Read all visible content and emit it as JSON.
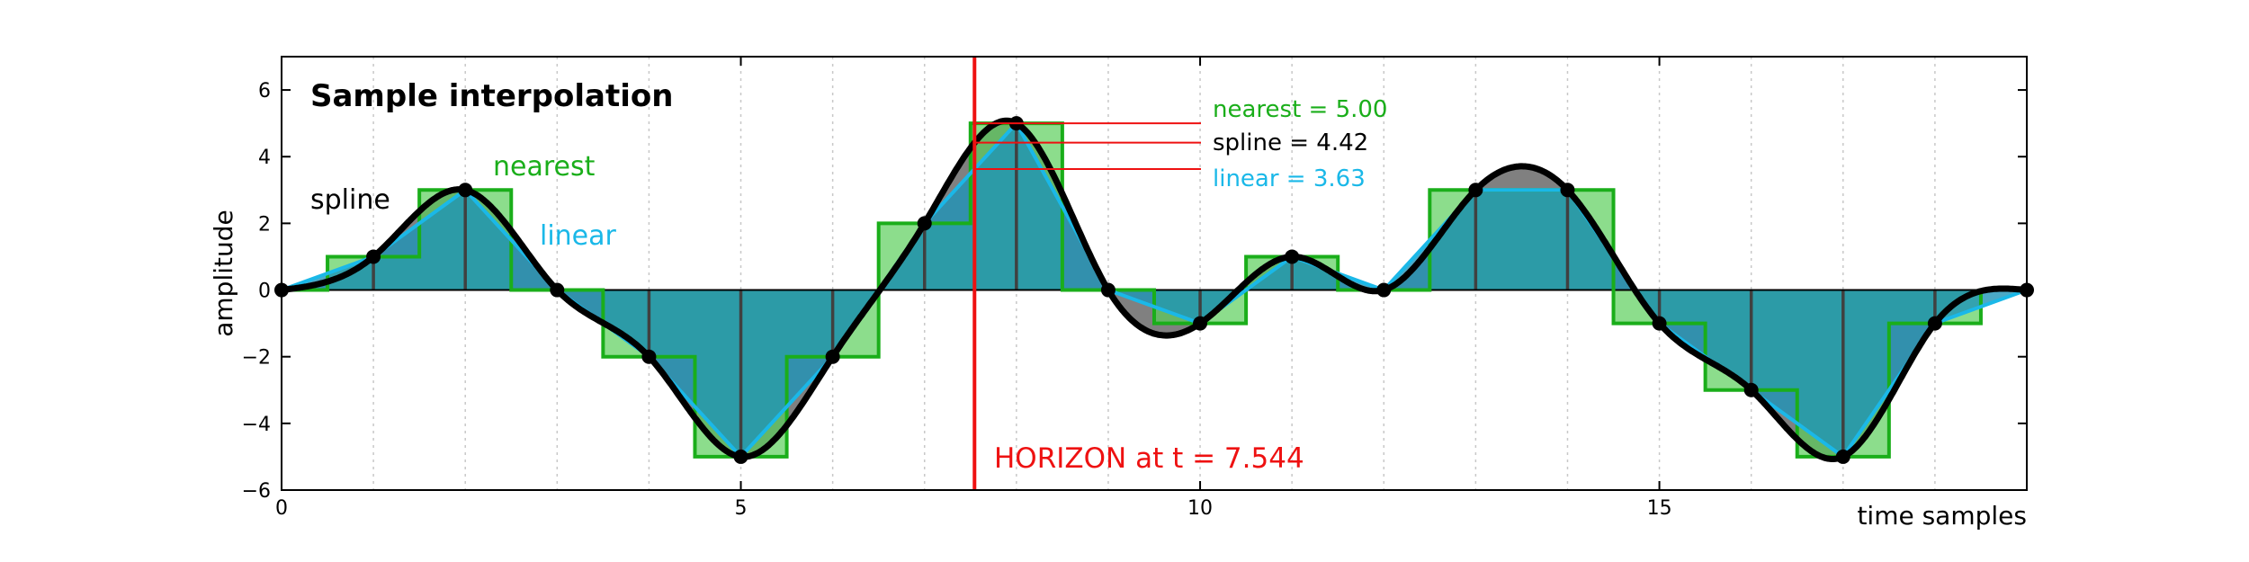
{
  "chart_data": {
    "type": "line",
    "title": "Sample interpolation",
    "xlabel": "time samples",
    "ylabel": "amplitude",
    "xlim": [
      0,
      19
    ],
    "ylim": [
      -6,
      7
    ],
    "x_ticks": [
      0,
      5,
      10,
      15
    ],
    "x_tick_labels": [
      "0",
      "5",
      "10",
      "15"
    ],
    "y_ticks": [
      -6,
      -4,
      -2,
      0,
      2,
      4,
      6
    ],
    "y_tick_labels": [
      "−6",
      "−4",
      "−2",
      "0",
      "2",
      "4",
      "6"
    ],
    "grid": "vertical dotted at every sample",
    "samples": {
      "x": [
        0,
        1,
        2,
        3,
        4,
        5,
        6,
        7,
        8,
        9,
        10,
        11,
        12,
        13,
        14,
        15,
        16,
        17,
        18,
        19
      ],
      "y": [
        0,
        1,
        3,
        0,
        -2,
        -5,
        -2,
        2,
        5,
        0,
        -1,
        1,
        0,
        3,
        3,
        -1,
        -3,
        -5,
        -1,
        0
      ]
    },
    "series": [
      {
        "name": "spline",
        "label": "spline",
        "color": "#000000",
        "style": "thick black curve"
      },
      {
        "name": "linear",
        "label": "linear",
        "color": "#1ab8e8",
        "style": "line"
      },
      {
        "name": "nearest",
        "label": "nearest",
        "color": "#1aae1a",
        "style": "step"
      }
    ],
    "horizon": {
      "t": 7.544,
      "label": "HORIZON at t = 7.544",
      "color": "#ee1111"
    },
    "readouts": [
      {
        "name": "nearest",
        "text": "nearest = 5.00",
        "value": 5.0,
        "color": "#1aae1a"
      },
      {
        "name": "spline",
        "text": "spline = 4.42",
        "value": 4.42,
        "color": "#000000"
      },
      {
        "name": "linear",
        "text": "linear = 3.63",
        "value": 3.63,
        "color": "#1ab8e8"
      }
    ]
  }
}
